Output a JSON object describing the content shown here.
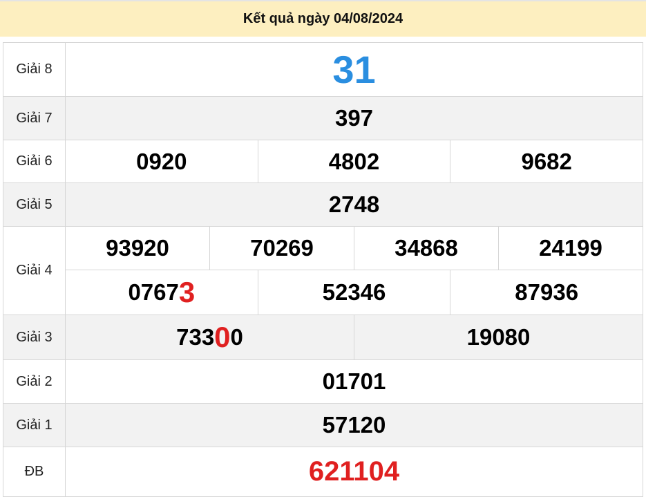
{
  "header": {
    "title": "Kết quả ngày 04/08/2024"
  },
  "colors": {
    "header_bg": "#fdefc0",
    "special": "#e02020",
    "giai8": "#2a8ee0",
    "highlight": "#e02020"
  },
  "prizes": [
    {
      "label": "Giải 8",
      "numbers": [
        {
          "pre": "31",
          "hl": "",
          "post": ""
        }
      ]
    },
    {
      "label": "Giải 7",
      "numbers": [
        {
          "pre": "397",
          "hl": "",
          "post": ""
        }
      ]
    },
    {
      "label": "Giải 6",
      "numbers": [
        {
          "pre": "0920",
          "hl": "",
          "post": ""
        },
        {
          "pre": "4802",
          "hl": "",
          "post": ""
        },
        {
          "pre": "9682",
          "hl": "",
          "post": ""
        }
      ]
    },
    {
      "label": "Giải 5",
      "numbers": [
        {
          "pre": "2748",
          "hl": "",
          "post": ""
        }
      ]
    },
    {
      "label": "Giải 4",
      "numbers": [
        {
          "pre": "93920",
          "hl": "",
          "post": ""
        },
        {
          "pre": "70269",
          "hl": "",
          "post": ""
        },
        {
          "pre": "34868",
          "hl": "",
          "post": ""
        },
        {
          "pre": "24199",
          "hl": "",
          "post": ""
        },
        {
          "pre": "0767",
          "hl": "3",
          "post": ""
        },
        {
          "pre": "52346",
          "hl": "",
          "post": ""
        },
        {
          "pre": "87936",
          "hl": "",
          "post": ""
        }
      ]
    },
    {
      "label": "Giải 3",
      "numbers": [
        {
          "pre": "733",
          "hl": "0",
          "post": "0"
        },
        {
          "pre": "19080",
          "hl": "",
          "post": ""
        }
      ]
    },
    {
      "label": "Giải 2",
      "numbers": [
        {
          "pre": "01701",
          "hl": "",
          "post": ""
        }
      ]
    },
    {
      "label": "Giải 1",
      "numbers": [
        {
          "pre": "57120",
          "hl": "",
          "post": ""
        }
      ]
    },
    {
      "label": "ĐB",
      "numbers": [
        {
          "pre": "621104",
          "hl": "",
          "post": ""
        }
      ]
    }
  ]
}
